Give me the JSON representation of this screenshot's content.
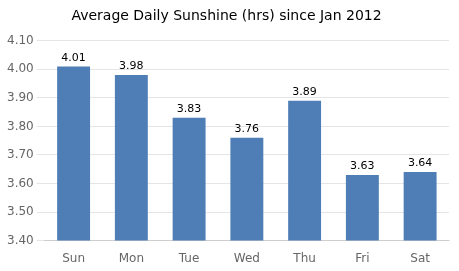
{
  "chart_data": {
    "type": "bar",
    "title": "Average Daily Sunshine (hrs) since Jan 2012",
    "categories": [
      "Sun",
      "Mon",
      "Tue",
      "Wed",
      "Thu",
      "Fri",
      "Sat"
    ],
    "values": [
      4.01,
      3.98,
      3.83,
      3.76,
      3.89,
      3.63,
      3.64
    ],
    "color": "#4e7eb5",
    "ylim": [
      3.4,
      4.1
    ],
    "yticks": [
      {
        "value": 3.4,
        "label": "3.40"
      },
      {
        "value": 3.5,
        "label": "3.50"
      },
      {
        "value": 3.6,
        "label": "3.60"
      },
      {
        "value": 3.7,
        "label": "3.70"
      },
      {
        "value": 3.8,
        "label": "3.80"
      },
      {
        "value": 3.9,
        "label": "3.90"
      },
      {
        "value": 4.0,
        "label": "4.00"
      },
      {
        "value": 4.1,
        "label": "4.10"
      }
    ],
    "grid": true,
    "data_labels": true
  }
}
